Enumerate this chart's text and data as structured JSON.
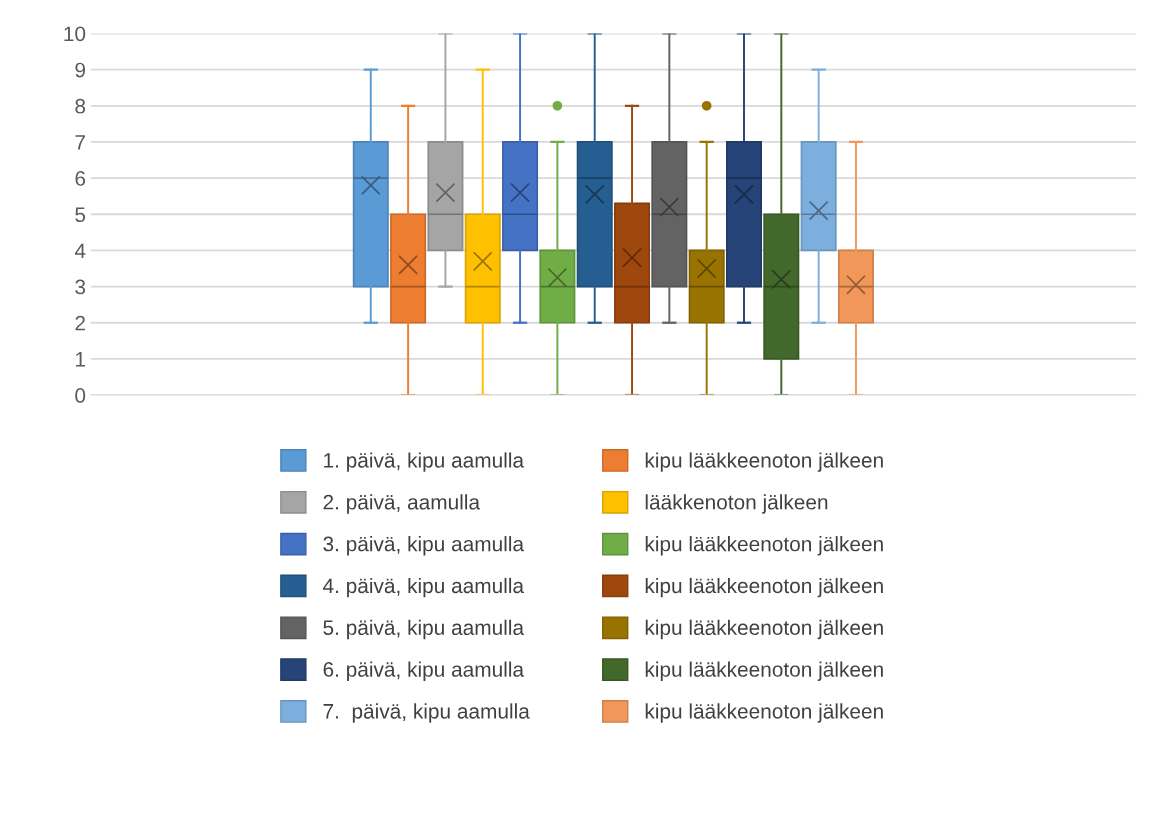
{
  "chart_data": {
    "type": "box",
    "categories": [
      null
    ],
    "ylim": [
      0,
      10
    ],
    "yticks": [
      0,
      1,
      2,
      3,
      4,
      5,
      6,
      7,
      8,
      9,
      10
    ],
    "grid": "y",
    "legend": "bottom",
    "tick_labels": "y",
    "marker": "cross",
    "series": [
      {
        "name": "1. päivä, kipu aamulla",
        "color": "#5b9bd5",
        "boxes": [
          {
            "low": 2,
            "q1": 3,
            "median": 6,
            "q3": 7,
            "high": 9,
            "mean": 5.8
          }
        ]
      },
      {
        "name": "kipu lääkkeenoton jälkeen",
        "color": "#ed7d31",
        "boxes": [
          {
            "low": 0,
            "q1": 2,
            "median": 3,
            "q3": 5,
            "high": 8,
            "mean": 3.6
          }
        ]
      },
      {
        "name": "2. päivä, aamulla",
        "color": "#a5a5a5",
        "boxes": [
          {
            "low": 3,
            "q1": 4,
            "median": 5,
            "q3": 7,
            "high": 10,
            "mean": 5.6
          }
        ]
      },
      {
        "name": "lääkkenoton jälkeen",
        "color": "#ffc000",
        "boxes": [
          {
            "low": 0,
            "q1": 2,
            "median": 3,
            "q3": 5,
            "high": 9,
            "mean": 3.7
          }
        ]
      },
      {
        "name": "3. päivä, kipu aamulla",
        "color": "#4472c4",
        "boxes": [
          {
            "low": 2,
            "q1": 4,
            "median": 5,
            "q3": 7,
            "high": 10,
            "mean": 5.6
          }
        ]
      },
      {
        "name": "kipu lääkkeenoton jälkeen",
        "color": "#70ad47",
        "boxes": [
          {
            "low": 0,
            "q1": 2,
            "median": 3,
            "q3": 4,
            "high": 7,
            "mean": 3.25,
            "outliers": [
              8
            ]
          }
        ]
      },
      {
        "name": "4. päivä, kipu aamulla",
        "color": "#255e91",
        "boxes": [
          {
            "low": 2,
            "q1": 3,
            "median": 6,
            "q3": 7,
            "high": 10,
            "mean": 5.55
          }
        ]
      },
      {
        "name": "kipu lääkkeenoton jälkeen",
        "color": "#9e480e",
        "boxes": [
          {
            "low": 0,
            "q1": 2,
            "median": 3,
            "q3": 5.3,
            "high": 8,
            "mean": 3.8
          }
        ]
      },
      {
        "name": "5. päivä, kipu aamulla",
        "color": "#636363",
        "boxes": [
          {
            "low": 2,
            "q1": 3,
            "median": 5,
            "q3": 7,
            "high": 10,
            "mean": 5.2
          }
        ]
      },
      {
        "name": "kipu lääkkeenoton jälkeen",
        "color": "#997300",
        "boxes": [
          {
            "low": 0,
            "q1": 2,
            "median": 3,
            "q3": 4,
            "high": 7,
            "mean": 3.5,
            "outliers": [
              8
            ]
          }
        ]
      },
      {
        "name": "6. päivä, kipu aamulla",
        "color": "#264478",
        "boxes": [
          {
            "low": 2,
            "q1": 3,
            "median": 6,
            "q3": 7,
            "high": 10,
            "mean": 5.55
          }
        ]
      },
      {
        "name": "kipu lääkkeenoton jälkeen",
        "color": "#43682b",
        "boxes": [
          {
            "low": 0,
            "q1": 1,
            "median": 3,
            "q3": 5,
            "high": 10,
            "mean": 3.2
          }
        ]
      },
      {
        "name": "7.  päivä, kipu aamulla",
        "color": "#7cafdd",
        "boxes": [
          {
            "low": 2,
            "q1": 4,
            "median": 5,
            "q3": 7,
            "high": 9,
            "mean": 5.1
          }
        ]
      },
      {
        "name": "kipu lääkkeenoton jälkeen",
        "color": "#f1975a",
        "boxes": [
          {
            "low": 0,
            "q1": 2,
            "median": 3,
            "q3": 4,
            "high": 7,
            "mean": 3.05
          }
        ]
      }
    ]
  }
}
